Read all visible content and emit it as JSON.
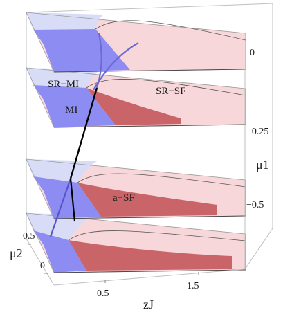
{
  "chart_data": {
    "type": "3d-phase-diagram",
    "title": "",
    "xlabel": "zJ",
    "ylabel": "μ2",
    "zlabel": "μ1",
    "x_ticks": [
      "0.5",
      "1.5"
    ],
    "y_ticks": [
      "0.5",
      "0"
    ],
    "z_ticks": [
      "0",
      "−0.25",
      "−0.5"
    ],
    "planes_mu1": [
      0,
      -0.25,
      -0.5,
      -0.75
    ],
    "phases": [
      {
        "name": "SR−MI",
        "color": "#d9dcf7"
      },
      {
        "name": "MI",
        "color": "#8c8cf2"
      },
      {
        "name": "SR−SF",
        "color": "#f7d7da"
      },
      {
        "name": "a−SF",
        "color": "#c96569"
      }
    ],
    "region_labels": [
      {
        "text": "SR−MI",
        "plane": 1
      },
      {
        "text": "MI",
        "plane": 1
      },
      {
        "text": "SR−SF",
        "plane": 1
      },
      {
        "text": "a−SF",
        "plane": 2
      }
    ]
  }
}
